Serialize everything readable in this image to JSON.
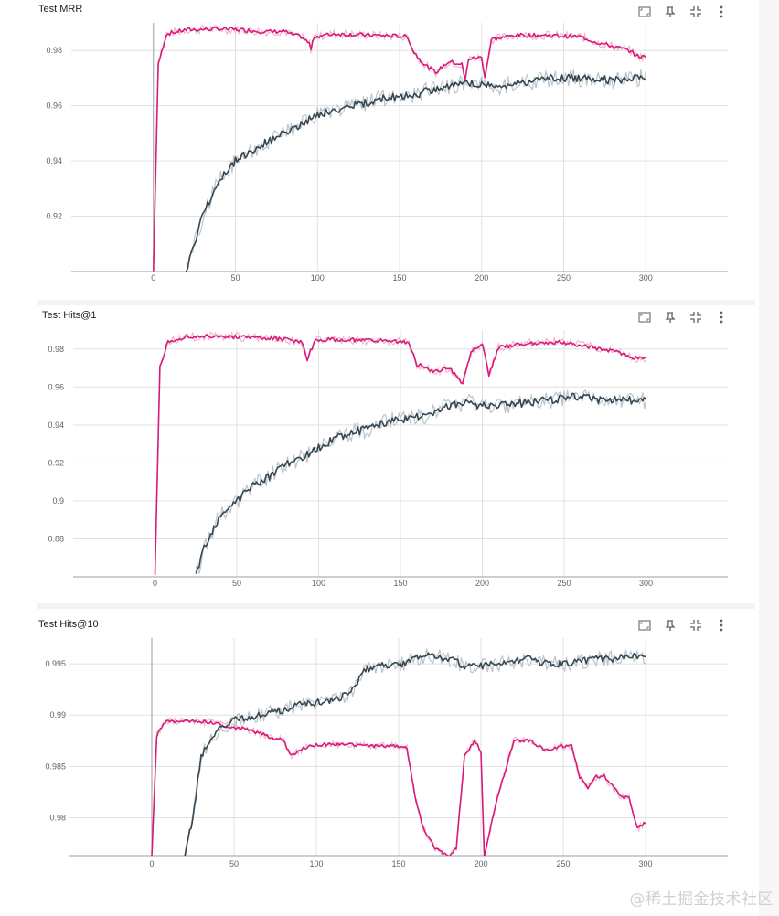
{
  "colors": {
    "pink": "#d81b7a",
    "pink_raw": "#f2b6cf",
    "dark": "#37474f",
    "dark_raw": "#b9c4cc",
    "grid": "#e0e0e0",
    "axis": "#9e9e9e"
  },
  "toolbar_icons": [
    "fullscreen-icon",
    "pin-icon",
    "fit-domain-icon",
    "more-vert-icon"
  ],
  "watermark": "@稀土掘金技术社区",
  "chart_data": [
    {
      "type": "line",
      "title": "Test MRR",
      "xlabel": "",
      "ylabel": "",
      "xlim": [
        -50,
        350
      ],
      "ylim": [
        0.9,
        0.99
      ],
      "xticks": [
        0,
        50,
        100,
        150,
        200,
        250,
        300
      ],
      "yticks": [
        0.92,
        0.94,
        0.96,
        0.98
      ],
      "ytick_labels": [
        "0.92",
        "0.94",
        "0.96",
        "0.98"
      ],
      "grid": true,
      "series": [
        {
          "color": "pink",
          "points": [
            [
              0,
              0.9
            ],
            [
              3,
              0.975
            ],
            [
              8,
              0.986
            ],
            [
              20,
              0.9875
            ],
            [
              40,
              0.9878
            ],
            [
              50,
              0.9876
            ],
            [
              60,
              0.9872
            ],
            [
              70,
              0.9868
            ],
            [
              80,
              0.987
            ],
            [
              83,
              0.986
            ],
            [
              90,
              0.985
            ],
            [
              95,
              0.9825
            ],
            [
              96,
              0.9805
            ],
            [
              98,
              0.985
            ],
            [
              110,
              0.986
            ],
            [
              120,
              0.9858
            ],
            [
              130,
              0.9856
            ],
            [
              140,
              0.9854
            ],
            [
              150,
              0.9852
            ],
            [
              155,
              0.985
            ],
            [
              158,
              0.98
            ],
            [
              165,
              0.975
            ],
            [
              172,
              0.972
            ],
            [
              180,
              0.976
            ],
            [
              188,
              0.975
            ],
            [
              190,
              0.969
            ],
            [
              192,
              0.977
            ],
            [
              200,
              0.9775
            ],
            [
              202,
              0.9705
            ],
            [
              206,
              0.984
            ],
            [
              220,
              0.9855
            ],
            [
              240,
              0.9855
            ],
            [
              250,
              0.9852
            ],
            [
              260,
              0.985
            ],
            [
              270,
              0.983
            ],
            [
              280,
              0.9815
            ],
            [
              290,
              0.98
            ],
            [
              295,
              0.978
            ],
            [
              300,
              0.9775
            ]
          ]
        },
        {
          "color": "dark",
          "points": [
            [
              20,
              0.9
            ],
            [
              30,
              0.92
            ],
            [
              40,
              0.933
            ],
            [
              50,
              0.94
            ],
            [
              60,
              0.944
            ],
            [
              70,
              0.947
            ],
            [
              80,
              0.95
            ],
            [
              90,
              0.953
            ],
            [
              100,
              0.957
            ],
            [
              110,
              0.958
            ],
            [
              120,
              0.96
            ],
            [
              130,
              0.961
            ],
            [
              140,
              0.963
            ],
            [
              150,
              0.963
            ],
            [
              160,
              0.964
            ],
            [
              170,
              0.966
            ],
            [
              180,
              0.967
            ],
            [
              190,
              0.968
            ],
            [
              200,
              0.968
            ],
            [
              210,
              0.967
            ],
            [
              220,
              0.968
            ],
            [
              230,
              0.969
            ],
            [
              240,
              0.97
            ],
            [
              250,
              0.97
            ],
            [
              260,
              0.97
            ],
            [
              270,
              0.97
            ],
            [
              280,
              0.969
            ],
            [
              290,
              0.97
            ],
            [
              300,
              0.97
            ]
          ]
        }
      ]
    },
    {
      "type": "line",
      "title": "Test Hits@1",
      "xlabel": "",
      "ylabel": "",
      "xlim": [
        -50,
        350
      ],
      "ylim": [
        0.86,
        0.99
      ],
      "xticks": [
        0,
        50,
        100,
        150,
        200,
        250,
        300
      ],
      "yticks": [
        0.88,
        0.9,
        0.92,
        0.94,
        0.96,
        0.98
      ],
      "ytick_labels": [
        "0.88",
        "0.9",
        "0.92",
        "0.94",
        "0.96",
        "0.98"
      ],
      "grid": true,
      "series": [
        {
          "color": "pink",
          "points": [
            [
              0,
              0.86
            ],
            [
              3,
              0.97
            ],
            [
              8,
              0.984
            ],
            [
              20,
              0.9865
            ],
            [
              40,
              0.9868
            ],
            [
              60,
              0.9858
            ],
            [
              80,
              0.985
            ],
            [
              90,
              0.9835
            ],
            [
              93,
              0.975
            ],
            [
              98,
              0.9845
            ],
            [
              110,
              0.985
            ],
            [
              130,
              0.9845
            ],
            [
              150,
              0.984
            ],
            [
              155,
              0.983
            ],
            [
              160,
              0.972
            ],
            [
              170,
              0.968
            ],
            [
              180,
              0.97
            ],
            [
              188,
              0.962
            ],
            [
              193,
              0.978
            ],
            [
              200,
              0.983
            ],
            [
              204,
              0.966
            ],
            [
              210,
              0.981
            ],
            [
              230,
              0.983
            ],
            [
              250,
              0.9835
            ],
            [
              260,
              0.982
            ],
            [
              280,
              0.979
            ],
            [
              290,
              0.976
            ],
            [
              300,
              0.9745
            ]
          ]
        },
        {
          "color": "dark",
          "points": [
            [
              25,
              0.86
            ],
            [
              30,
              0.875
            ],
            [
              40,
              0.892
            ],
            [
              50,
              0.9
            ],
            [
              60,
              0.908
            ],
            [
              70,
              0.913
            ],
            [
              80,
              0.919
            ],
            [
              90,
              0.923
            ],
            [
              100,
              0.928
            ],
            [
              110,
              0.933
            ],
            [
              120,
              0.936
            ],
            [
              130,
              0.938
            ],
            [
              140,
              0.941
            ],
            [
              150,
              0.943
            ],
            [
              160,
              0.944
            ],
            [
              170,
              0.946
            ],
            [
              180,
              0.95
            ],
            [
              190,
              0.952
            ],
            [
              200,
              0.95
            ],
            [
              210,
              0.95
            ],
            [
              220,
              0.951
            ],
            [
              230,
              0.952
            ],
            [
              240,
              0.953
            ],
            [
              250,
              0.954
            ],
            [
              260,
              0.955
            ],
            [
              270,
              0.953
            ],
            [
              280,
              0.953
            ],
            [
              290,
              0.953
            ],
            [
              300,
              0.953
            ]
          ]
        }
      ]
    },
    {
      "type": "line",
      "title": "Test Hits@10",
      "xlabel": "",
      "ylabel": "",
      "xlim": [
        -50,
        350
      ],
      "ylim": [
        0.9763,
        0.9975
      ],
      "xticks": [
        0,
        50,
        100,
        150,
        200,
        250,
        300
      ],
      "yticks": [
        0.98,
        0.985,
        0.99,
        0.995
      ],
      "ytick_labels": [
        "0.98",
        "0.985",
        "0.99",
        "0.995"
      ],
      "grid": true,
      "series": [
        {
          "color": "pink",
          "points": [
            [
              0,
              0.9763
            ],
            [
              3,
              0.988
            ],
            [
              8,
              0.9893
            ],
            [
              20,
              0.9895
            ],
            [
              35,
              0.9893
            ],
            [
              50,
              0.9888
            ],
            [
              60,
              0.9885
            ],
            [
              70,
              0.988
            ],
            [
              80,
              0.9875
            ],
            [
              85,
              0.986
            ],
            [
              95,
              0.987
            ],
            [
              110,
              0.9872
            ],
            [
              130,
              0.987
            ],
            [
              150,
              0.987
            ],
            [
              155,
              0.9868
            ],
            [
              160,
              0.982
            ],
            [
              165,
              0.979
            ],
            [
              172,
              0.977
            ],
            [
              180,
              0.9763
            ],
            [
              185,
              0.977
            ],
            [
              190,
              0.986
            ],
            [
              196,
              0.9875
            ],
            [
              200,
              0.9865
            ],
            [
              202,
              0.9763
            ],
            [
              210,
              0.982
            ],
            [
              220,
              0.9875
            ],
            [
              230,
              0.9875
            ],
            [
              240,
              0.9865
            ],
            [
              250,
              0.987
            ],
            [
              255,
              0.987
            ],
            [
              260,
              0.984
            ],
            [
              265,
              0.983
            ],
            [
              270,
              0.984
            ],
            [
              275,
              0.984
            ],
            [
              285,
              0.982
            ],
            [
              290,
              0.982
            ],
            [
              295,
              0.979
            ],
            [
              300,
              0.9795
            ]
          ]
        },
        {
          "color": "dark",
          "points": [
            [
              20,
              0.9763
            ],
            [
              25,
              0.98
            ],
            [
              30,
              0.986
            ],
            [
              40,
              0.9885
            ],
            [
              50,
              0.9895
            ],
            [
              60,
              0.9898
            ],
            [
              70,
              0.9902
            ],
            [
              80,
              0.9905
            ],
            [
              90,
              0.991
            ],
            [
              100,
              0.9912
            ],
            [
              110,
              0.9915
            ],
            [
              120,
              0.992
            ],
            [
              130,
              0.9945
            ],
            [
              140,
              0.9948
            ],
            [
              150,
              0.9948
            ],
            [
              160,
              0.9955
            ],
            [
              170,
              0.9958
            ],
            [
              180,
              0.9955
            ],
            [
              190,
              0.9948
            ],
            [
              200,
              0.9948
            ],
            [
              210,
              0.995
            ],
            [
              220,
              0.9952
            ],
            [
              230,
              0.9955
            ],
            [
              240,
              0.995
            ],
            [
              250,
              0.995
            ],
            [
              260,
              0.9952
            ],
            [
              270,
              0.9955
            ],
            [
              280,
              0.9955
            ],
            [
              290,
              0.9958
            ],
            [
              300,
              0.9955
            ]
          ]
        }
      ]
    }
  ]
}
